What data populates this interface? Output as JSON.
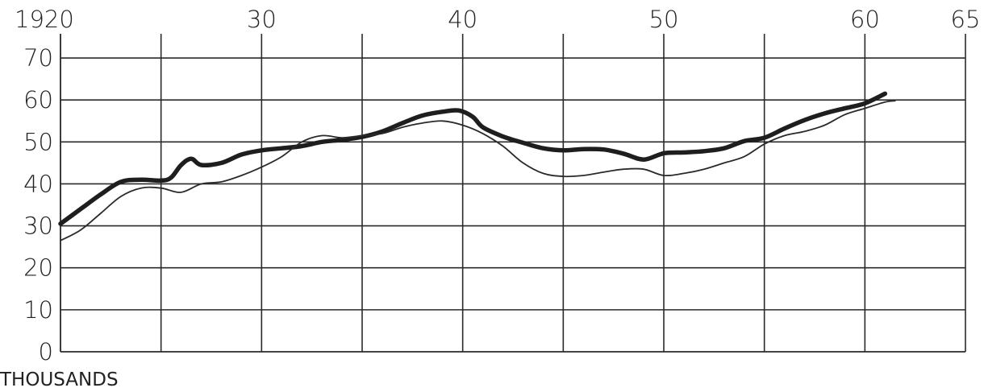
{
  "chart_data": {
    "type": "line",
    "xlabel": "",
    "ylabel": "THOUSANDS",
    "xlim": [
      1920,
      1965
    ],
    "ylim": [
      0,
      75
    ],
    "x_ticks": [
      {
        "value": 1920,
        "label": "1920"
      },
      {
        "value": 1925,
        "label": ""
      },
      {
        "value": 1930,
        "label": "30"
      },
      {
        "value": 1935,
        "label": ""
      },
      {
        "value": 1940,
        "label": "40"
      },
      {
        "value": 1945,
        "label": ""
      },
      {
        "value": 1950,
        "label": "50"
      },
      {
        "value": 1955,
        "label": ""
      },
      {
        "value": 1960,
        "label": "60"
      },
      {
        "value": 1965,
        "label": "65"
      }
    ],
    "y_ticks": [
      {
        "value": 0,
        "label": "0"
      },
      {
        "value": 10,
        "label": "10"
      },
      {
        "value": 20,
        "label": "20"
      },
      {
        "value": 30,
        "label": "30"
      },
      {
        "value": 40,
        "label": "40"
      },
      {
        "value": 50,
        "label": "50"
      },
      {
        "value": 60,
        "label": "60"
      },
      {
        "value": 70,
        "label": "70"
      }
    ],
    "grid": true,
    "series": [
      {
        "style": "thick",
        "color": "#1e1e1e",
        "x": [
          1920,
          1921,
          1922,
          1923,
          1924,
          1925,
          1925.5,
          1926,
          1926.5,
          1927,
          1928,
          1929,
          1930,
          1931,
          1932,
          1933,
          1934,
          1935,
          1936,
          1937,
          1938,
          1939,
          1939.8,
          1940.5,
          1941,
          1942,
          1943,
          1944,
          1945,
          1946,
          1947,
          1948,
          1949,
          1950,
          1951,
          1952,
          1953,
          1954,
          1955,
          1956,
          1957,
          1958,
          1959,
          1960,
          1961
        ],
        "y": [
          30.5,
          34,
          37.5,
          40.5,
          41,
          40.8,
          41.5,
          44.5,
          46,
          44.5,
          45,
          47,
          48,
          48.5,
          49,
          50,
          50.5,
          51.2,
          52.5,
          54.5,
          56.3,
          57.2,
          57.5,
          56,
          53.5,
          51.3,
          49.8,
          48.5,
          48,
          48.3,
          48.2,
          47.2,
          45.8,
          47.3,
          47.5,
          47.8,
          48.5,
          50.2,
          51,
          53.2,
          55.2,
          56.8,
          58,
          59.2,
          61.5
        ]
      },
      {
        "style": "thin",
        "color": "#2a2a2a",
        "x": [
          1920,
          1921,
          1922,
          1923,
          1924,
          1925,
          1926,
          1927,
          1928,
          1929,
          1930,
          1931,
          1932,
          1933,
          1934,
          1935,
          1936,
          1937,
          1938,
          1939,
          1940,
          1941,
          1942,
          1943,
          1944,
          1945,
          1946,
          1947,
          1948,
          1949,
          1950,
          1951,
          1952,
          1953,
          1954,
          1955,
          1956,
          1957,
          1958,
          1959,
          1960,
          1961,
          1961.5
        ],
        "y": [
          26.5,
          29,
          33,
          37,
          39,
          39,
          38,
          40,
          40.5,
          42,
          44,
          46.5,
          50,
          51.5,
          51,
          51.5,
          52,
          53.5,
          54.5,
          55,
          54,
          52,
          49,
          45,
          42.5,
          41.8,
          42,
          42.8,
          43.5,
          43.5,
          42,
          42.5,
          43.5,
          45,
          46.5,
          49.5,
          51.5,
          52.5,
          54,
          56.5,
          58,
          59.5,
          59.8
        ]
      }
    ]
  }
}
